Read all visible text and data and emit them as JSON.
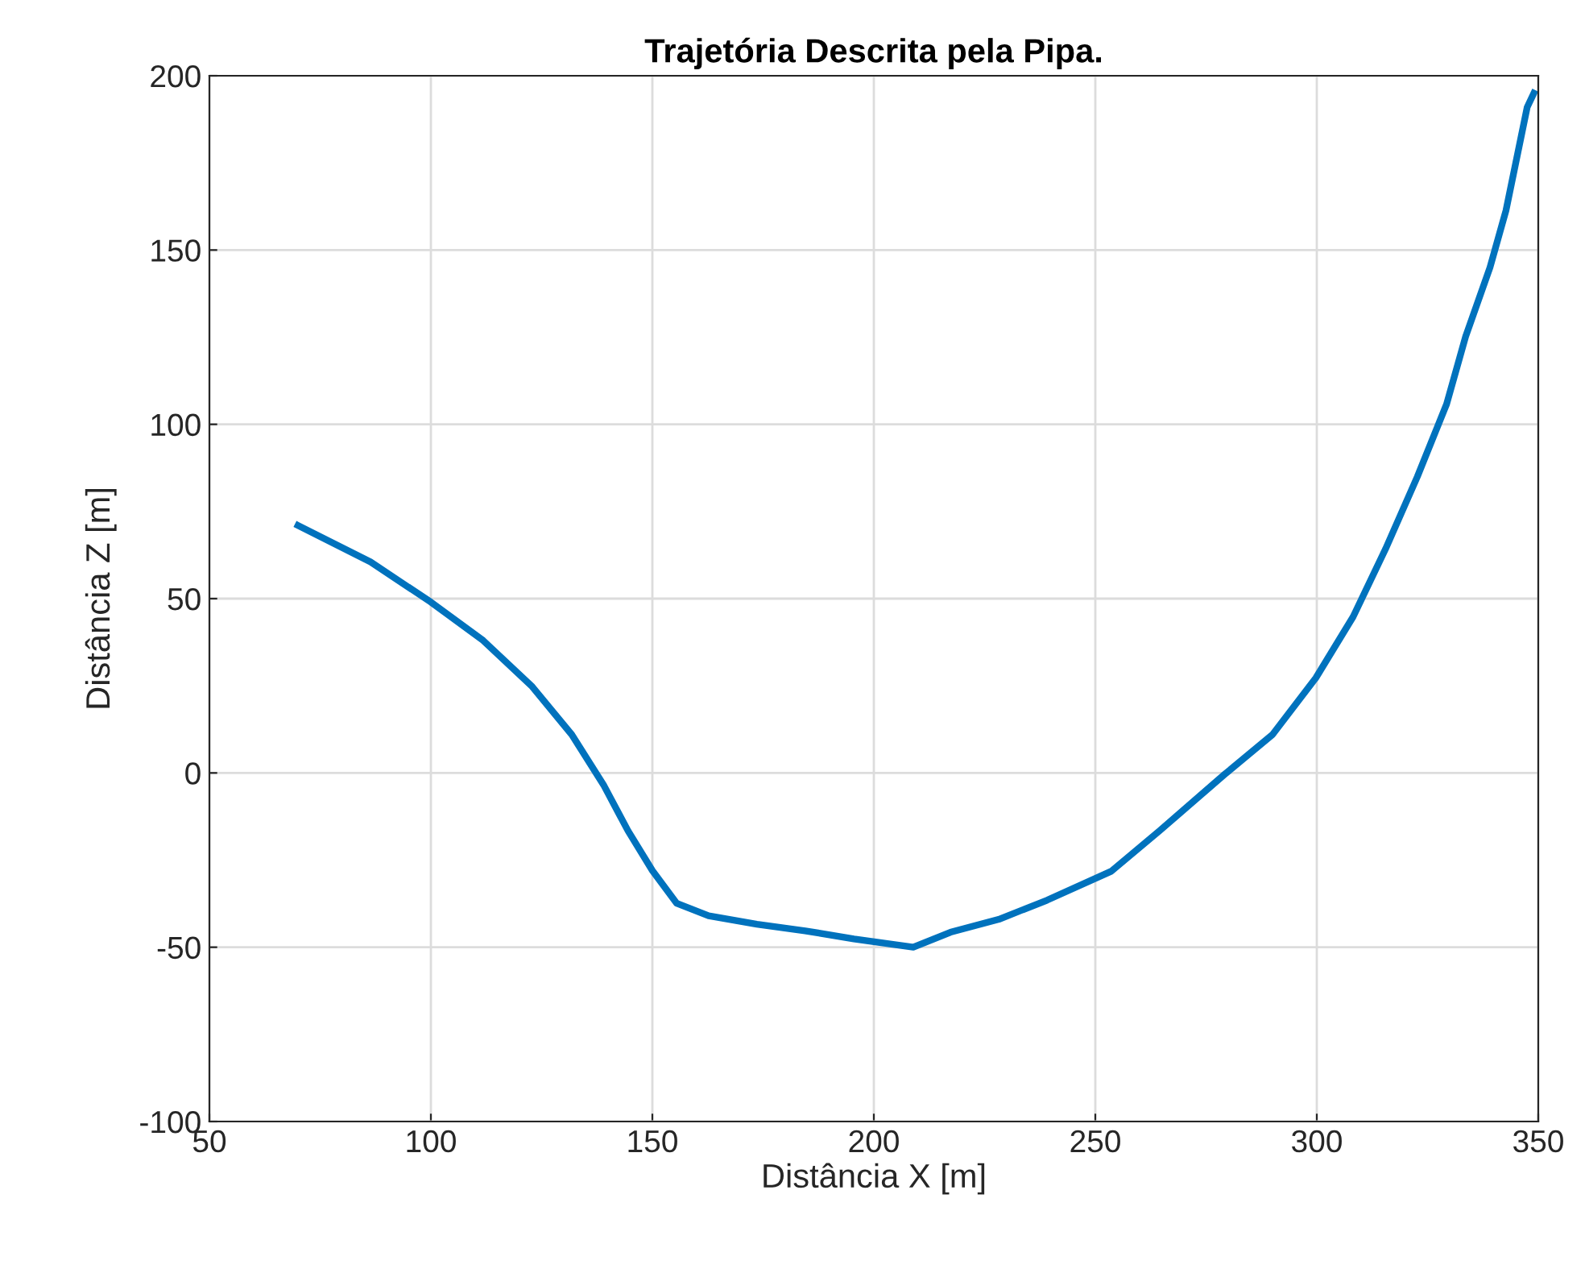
{
  "chart_data": {
    "type": "line",
    "title": "Trajetória Descrita pela Pipa.",
    "xlabel": "Distância X [m]",
    "ylabel": "Distância Z [m]",
    "xlim": [
      50,
      350
    ],
    "xticks": [
      50,
      100,
      150,
      200,
      250,
      300,
      350
    ],
    "ylim": [
      -100,
      200
    ],
    "yticks": [
      -100,
      -50,
      0,
      50,
      100,
      150,
      200
    ],
    "grid": true,
    "series": [
      {
        "color": "#0072bd",
        "x": [
          70,
          86.4,
          100,
          111.8,
          122.7,
          131.8,
          139.1,
          144.5,
          150,
          155.5,
          162.7,
          173.6,
          184.5,
          195.5,
          208.9,
          217.3,
          228.2,
          239.1,
          253.6,
          264.5,
          279.1,
          290,
          299.8,
          308.2,
          315.5,
          322.7,
          329.3,
          333.6,
          339.1,
          342.7,
          347.5,
          349
        ],
        "values": [
          71,
          60.5,
          49,
          38,
          25,
          11,
          -3.7,
          -16.6,
          -28,
          -37.4,
          -41,
          -43.4,
          -45.3,
          -47.6,
          -50,
          -45.7,
          -42,
          -36.5,
          -28.2,
          -16.6,
          -0.5,
          11,
          27.3,
          44.8,
          64.2,
          85,
          105.8,
          125.2,
          145,
          161.3,
          191,
          195
        ]
      }
    ]
  }
}
